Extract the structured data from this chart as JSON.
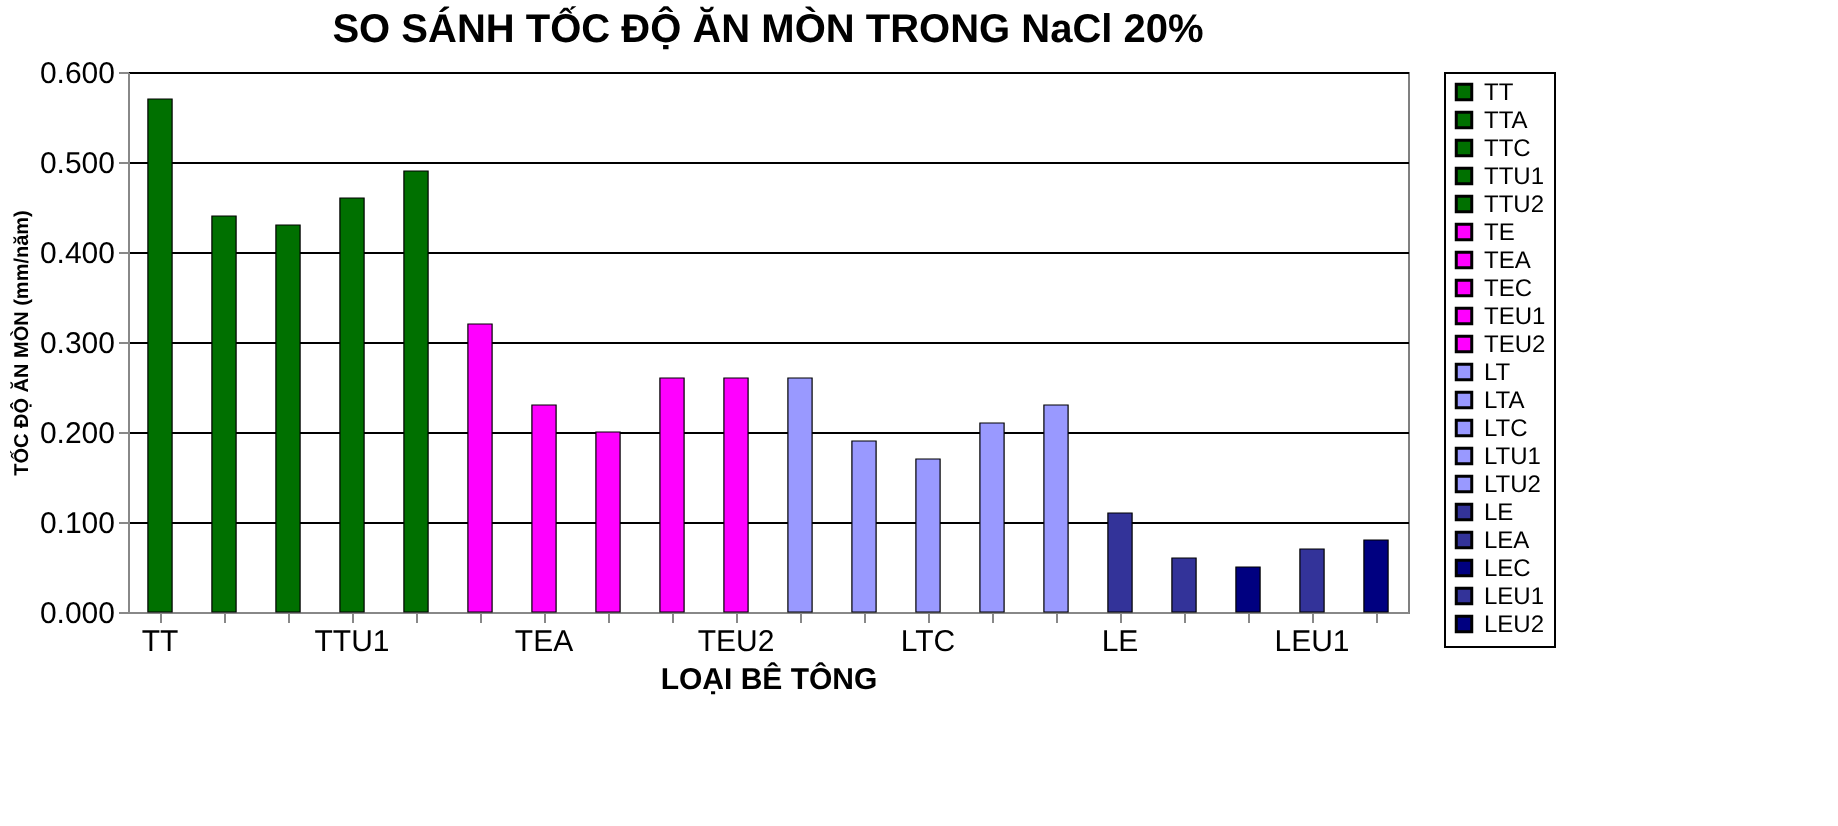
{
  "chart_data": {
    "type": "bar",
    "title": "SO SÁNH TỐC ĐỘ ĂN MÒN TRONG NaCl 20%",
    "xlabel": "LOẠI BÊ TÔNG",
    "ylabel": "TỐC ĐỘ ĂN MÒN (mm/năm)",
    "categories": [
      "TT",
      null,
      null,
      "TTU1",
      null,
      null,
      "TEA",
      null,
      null,
      "TEU2",
      null,
      null,
      "LTC",
      null,
      null,
      "LE",
      null,
      null,
      "LEU1",
      null
    ],
    "series": [
      {
        "name": "TT",
        "color": "#007000",
        "values": [
          0.57,
          null,
          null,
          null,
          null,
          null,
          null,
          null,
          null,
          null,
          null,
          null,
          null,
          null,
          null,
          null,
          null,
          null,
          null,
          null
        ]
      },
      {
        "name": "TTA",
        "color": "#007000",
        "values": [
          null,
          0.44,
          null,
          null,
          null,
          null,
          null,
          null,
          null,
          null,
          null,
          null,
          null,
          null,
          null,
          null,
          null,
          null,
          null,
          null
        ]
      },
      {
        "name": "TTC",
        "color": "#007000",
        "values": [
          null,
          null,
          0.43,
          null,
          null,
          null,
          null,
          null,
          null,
          null,
          null,
          null,
          null,
          null,
          null,
          null,
          null,
          null,
          null,
          null
        ]
      },
      {
        "name": "TTU1",
        "color": "#007000",
        "values": [
          null,
          null,
          null,
          0.46,
          null,
          null,
          null,
          null,
          null,
          null,
          null,
          null,
          null,
          null,
          null,
          null,
          null,
          null,
          null,
          null
        ]
      },
      {
        "name": "TTU2",
        "color": "#007000",
        "values": [
          null,
          null,
          null,
          null,
          0.49,
          null,
          null,
          null,
          null,
          null,
          null,
          null,
          null,
          null,
          null,
          null,
          null,
          null,
          null,
          null
        ]
      },
      {
        "name": "TE",
        "color": "#ff00ff",
        "values": [
          null,
          null,
          null,
          null,
          null,
          0.32,
          null,
          null,
          null,
          null,
          null,
          null,
          null,
          null,
          null,
          null,
          null,
          null,
          null,
          null
        ]
      },
      {
        "name": "TEA",
        "color": "#ff00ff",
        "values": [
          null,
          null,
          null,
          null,
          null,
          null,
          0.23,
          null,
          null,
          null,
          null,
          null,
          null,
          null,
          null,
          null,
          null,
          null,
          null,
          null
        ]
      },
      {
        "name": "TEC",
        "color": "#ff00ff",
        "values": [
          null,
          null,
          null,
          null,
          null,
          null,
          null,
          0.2,
          null,
          null,
          null,
          null,
          null,
          null,
          null,
          null,
          null,
          null,
          null,
          null
        ]
      },
      {
        "name": "TEU1",
        "color": "#ff00ff",
        "values": [
          null,
          null,
          null,
          null,
          null,
          null,
          null,
          null,
          0.26,
          null,
          null,
          null,
          null,
          null,
          null,
          null,
          null,
          null,
          null,
          null
        ]
      },
      {
        "name": "TEU2",
        "color": "#ff00ff",
        "values": [
          null,
          null,
          null,
          null,
          null,
          null,
          null,
          null,
          null,
          0.26,
          null,
          null,
          null,
          null,
          null,
          null,
          null,
          null,
          null,
          null
        ]
      },
      {
        "name": "LT",
        "color": "#9999ff",
        "values": [
          null,
          null,
          null,
          null,
          null,
          null,
          null,
          null,
          null,
          null,
          0.26,
          null,
          null,
          null,
          null,
          null,
          null,
          null,
          null,
          null
        ]
      },
      {
        "name": "LTA",
        "color": "#9999ff",
        "values": [
          null,
          null,
          null,
          null,
          null,
          null,
          null,
          null,
          null,
          null,
          null,
          0.19,
          null,
          null,
          null,
          null,
          null,
          null,
          null,
          null
        ]
      },
      {
        "name": "LTC",
        "color": "#9999ff",
        "values": [
          null,
          null,
          null,
          null,
          null,
          null,
          null,
          null,
          null,
          null,
          null,
          null,
          0.17,
          null,
          null,
          null,
          null,
          null,
          null,
          null
        ]
      },
      {
        "name": "LTU1",
        "color": "#9999ff",
        "values": [
          null,
          null,
          null,
          null,
          null,
          null,
          null,
          null,
          null,
          null,
          null,
          null,
          null,
          0.21,
          null,
          null,
          null,
          null,
          null,
          null
        ]
      },
      {
        "name": "LTU2",
        "color": "#9999ff",
        "values": [
          null,
          null,
          null,
          null,
          null,
          null,
          null,
          null,
          null,
          null,
          null,
          null,
          null,
          null,
          0.23,
          null,
          null,
          null,
          null,
          null
        ]
      },
      {
        "name": "LE",
        "color": "#333399",
        "values": [
          null,
          null,
          null,
          null,
          null,
          null,
          null,
          null,
          null,
          null,
          null,
          null,
          null,
          null,
          null,
          0.11,
          null,
          null,
          null,
          null
        ]
      },
      {
        "name": "LEA",
        "color": "#333399",
        "values": [
          null,
          null,
          null,
          null,
          null,
          null,
          null,
          null,
          null,
          null,
          null,
          null,
          null,
          null,
          null,
          null,
          0.06,
          null,
          null,
          null
        ]
      },
      {
        "name": "LEC",
        "color": "#000080",
        "values": [
          null,
          null,
          null,
          null,
          null,
          null,
          null,
          null,
          null,
          null,
          null,
          null,
          null,
          null,
          null,
          null,
          null,
          0.05,
          null,
          null
        ]
      },
      {
        "name": "LEU1",
        "color": "#333399",
        "values": [
          null,
          null,
          null,
          null,
          null,
          null,
          null,
          null,
          null,
          null,
          null,
          null,
          null,
          null,
          null,
          null,
          null,
          null,
          0.07,
          null
        ]
      },
      {
        "name": "LEU2",
        "color": "#000080",
        "values": [
          null,
          null,
          null,
          null,
          null,
          null,
          null,
          null,
          null,
          null,
          null,
          null,
          null,
          null,
          null,
          null,
          null,
          null,
          null,
          0.08
        ]
      }
    ],
    "ylim": [
      0,
      0.6
    ],
    "yticks": [
      {
        "value": 0,
        "label": "0.000"
      },
      {
        "value": 0.1,
        "label": "0.100"
      },
      {
        "value": 0.2,
        "label": "0.200"
      },
      {
        "value": 0.3,
        "label": "0.300"
      },
      {
        "value": 0.4,
        "label": "0.400"
      },
      {
        "value": 0.5,
        "label": "0.500"
      },
      {
        "value": 0.6,
        "label": "0.600"
      }
    ],
    "grid": "y",
    "legend": "right"
  }
}
